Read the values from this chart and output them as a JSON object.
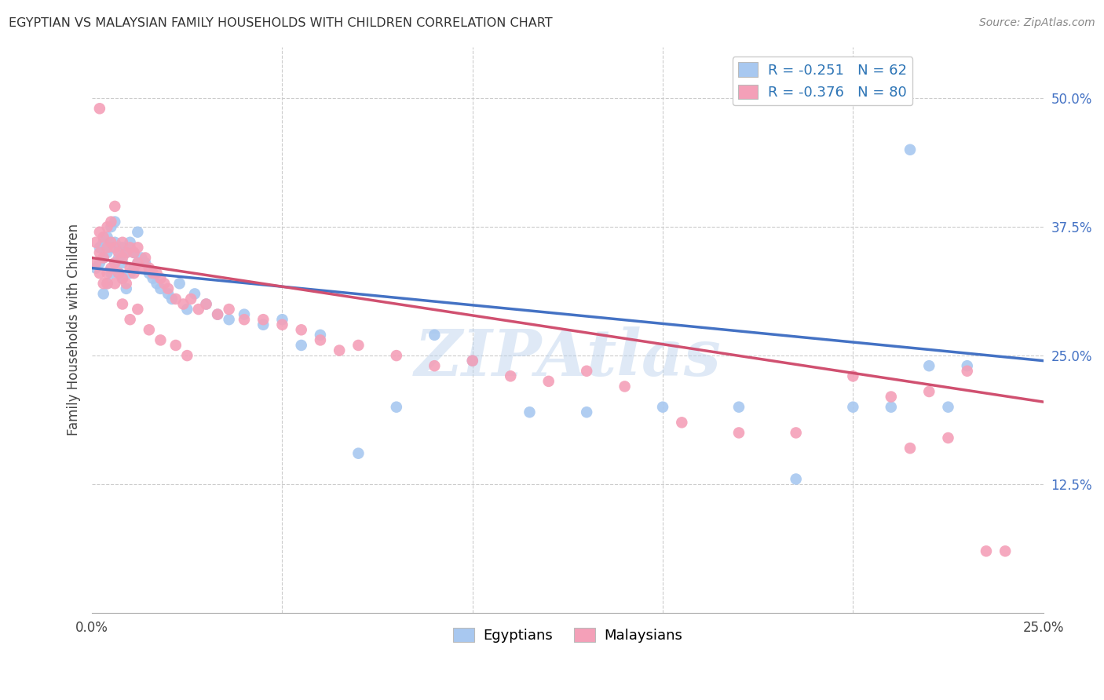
{
  "title": "EGYPTIAN VS MALAYSIAN FAMILY HOUSEHOLDS WITH CHILDREN CORRELATION CHART",
  "source": "Source: ZipAtlas.com",
  "ylabel": "Family Households with Children",
  "xlim": [
    0.0,
    0.25
  ],
  "ylim": [
    0.0,
    0.55
  ],
  "yticks": [
    0.125,
    0.25,
    0.375,
    0.5
  ],
  "ytick_labels": [
    "12.5%",
    "25.0%",
    "37.5%",
    "50.0%"
  ],
  "blue_color": "#A8C8F0",
  "pink_color": "#F4A0B8",
  "blue_line_color": "#4472C4",
  "pink_line_color": "#D05070",
  "legend_text_color": "#2E75B6",
  "R_egyptian": -0.251,
  "N_egyptian": 62,
  "R_malaysian": -0.376,
  "N_malaysian": 80,
  "watermark": "ZIPAtlas",
  "background_color": "#FFFFFF",
  "grid_color": "#CCCCCC",
  "egyptian_x": [
    0.001,
    0.002,
    0.002,
    0.003,
    0.003,
    0.003,
    0.004,
    0.004,
    0.004,
    0.005,
    0.005,
    0.005,
    0.006,
    0.006,
    0.006,
    0.007,
    0.007,
    0.008,
    0.008,
    0.008,
    0.009,
    0.009,
    0.01,
    0.01,
    0.011,
    0.011,
    0.012,
    0.012,
    0.013,
    0.014,
    0.015,
    0.016,
    0.017,
    0.018,
    0.02,
    0.021,
    0.023,
    0.025,
    0.027,
    0.03,
    0.033,
    0.036,
    0.04,
    0.045,
    0.05,
    0.055,
    0.06,
    0.07,
    0.08,
    0.09,
    0.1,
    0.115,
    0.13,
    0.15,
    0.17,
    0.185,
    0.2,
    0.21,
    0.215,
    0.22,
    0.225,
    0.23
  ],
  "egyptian_y": [
    0.335,
    0.34,
    0.355,
    0.31,
    0.345,
    0.36,
    0.32,
    0.35,
    0.365,
    0.33,
    0.355,
    0.375,
    0.34,
    0.36,
    0.38,
    0.33,
    0.345,
    0.325,
    0.34,
    0.355,
    0.315,
    0.35,
    0.33,
    0.36,
    0.335,
    0.35,
    0.34,
    0.37,
    0.345,
    0.34,
    0.33,
    0.325,
    0.32,
    0.315,
    0.31,
    0.305,
    0.32,
    0.295,
    0.31,
    0.3,
    0.29,
    0.285,
    0.29,
    0.28,
    0.285,
    0.26,
    0.27,
    0.155,
    0.2,
    0.27,
    0.245,
    0.195,
    0.195,
    0.2,
    0.2,
    0.13,
    0.2,
    0.2,
    0.45,
    0.24,
    0.2,
    0.24
  ],
  "malaysian_x": [
    0.001,
    0.001,
    0.002,
    0.002,
    0.002,
    0.003,
    0.003,
    0.003,
    0.004,
    0.004,
    0.004,
    0.005,
    0.005,
    0.005,
    0.006,
    0.006,
    0.006,
    0.007,
    0.007,
    0.008,
    0.008,
    0.008,
    0.009,
    0.009,
    0.01,
    0.01,
    0.011,
    0.011,
    0.012,
    0.012,
    0.013,
    0.014,
    0.015,
    0.016,
    0.017,
    0.018,
    0.019,
    0.02,
    0.022,
    0.024,
    0.026,
    0.028,
    0.03,
    0.033,
    0.036,
    0.04,
    0.045,
    0.05,
    0.055,
    0.06,
    0.065,
    0.07,
    0.08,
    0.09,
    0.1,
    0.11,
    0.12,
    0.13,
    0.14,
    0.155,
    0.17,
    0.185,
    0.2,
    0.21,
    0.215,
    0.22,
    0.225,
    0.23,
    0.235,
    0.24,
    0.012,
    0.015,
    0.018,
    0.022,
    0.025,
    0.008,
    0.01,
    0.006,
    0.004,
    0.002
  ],
  "malaysian_y": [
    0.34,
    0.36,
    0.33,
    0.35,
    0.37,
    0.32,
    0.345,
    0.365,
    0.33,
    0.355,
    0.375,
    0.335,
    0.36,
    0.38,
    0.34,
    0.355,
    0.395,
    0.33,
    0.35,
    0.325,
    0.345,
    0.36,
    0.32,
    0.35,
    0.335,
    0.355,
    0.33,
    0.35,
    0.34,
    0.355,
    0.335,
    0.345,
    0.335,
    0.33,
    0.33,
    0.325,
    0.32,
    0.315,
    0.305,
    0.3,
    0.305,
    0.295,
    0.3,
    0.29,
    0.295,
    0.285,
    0.285,
    0.28,
    0.275,
    0.265,
    0.255,
    0.26,
    0.25,
    0.24,
    0.245,
    0.23,
    0.225,
    0.235,
    0.22,
    0.185,
    0.175,
    0.175,
    0.23,
    0.21,
    0.16,
    0.215,
    0.17,
    0.235,
    0.06,
    0.06,
    0.295,
    0.275,
    0.265,
    0.26,
    0.25,
    0.3,
    0.285,
    0.32,
    0.32,
    0.49
  ]
}
